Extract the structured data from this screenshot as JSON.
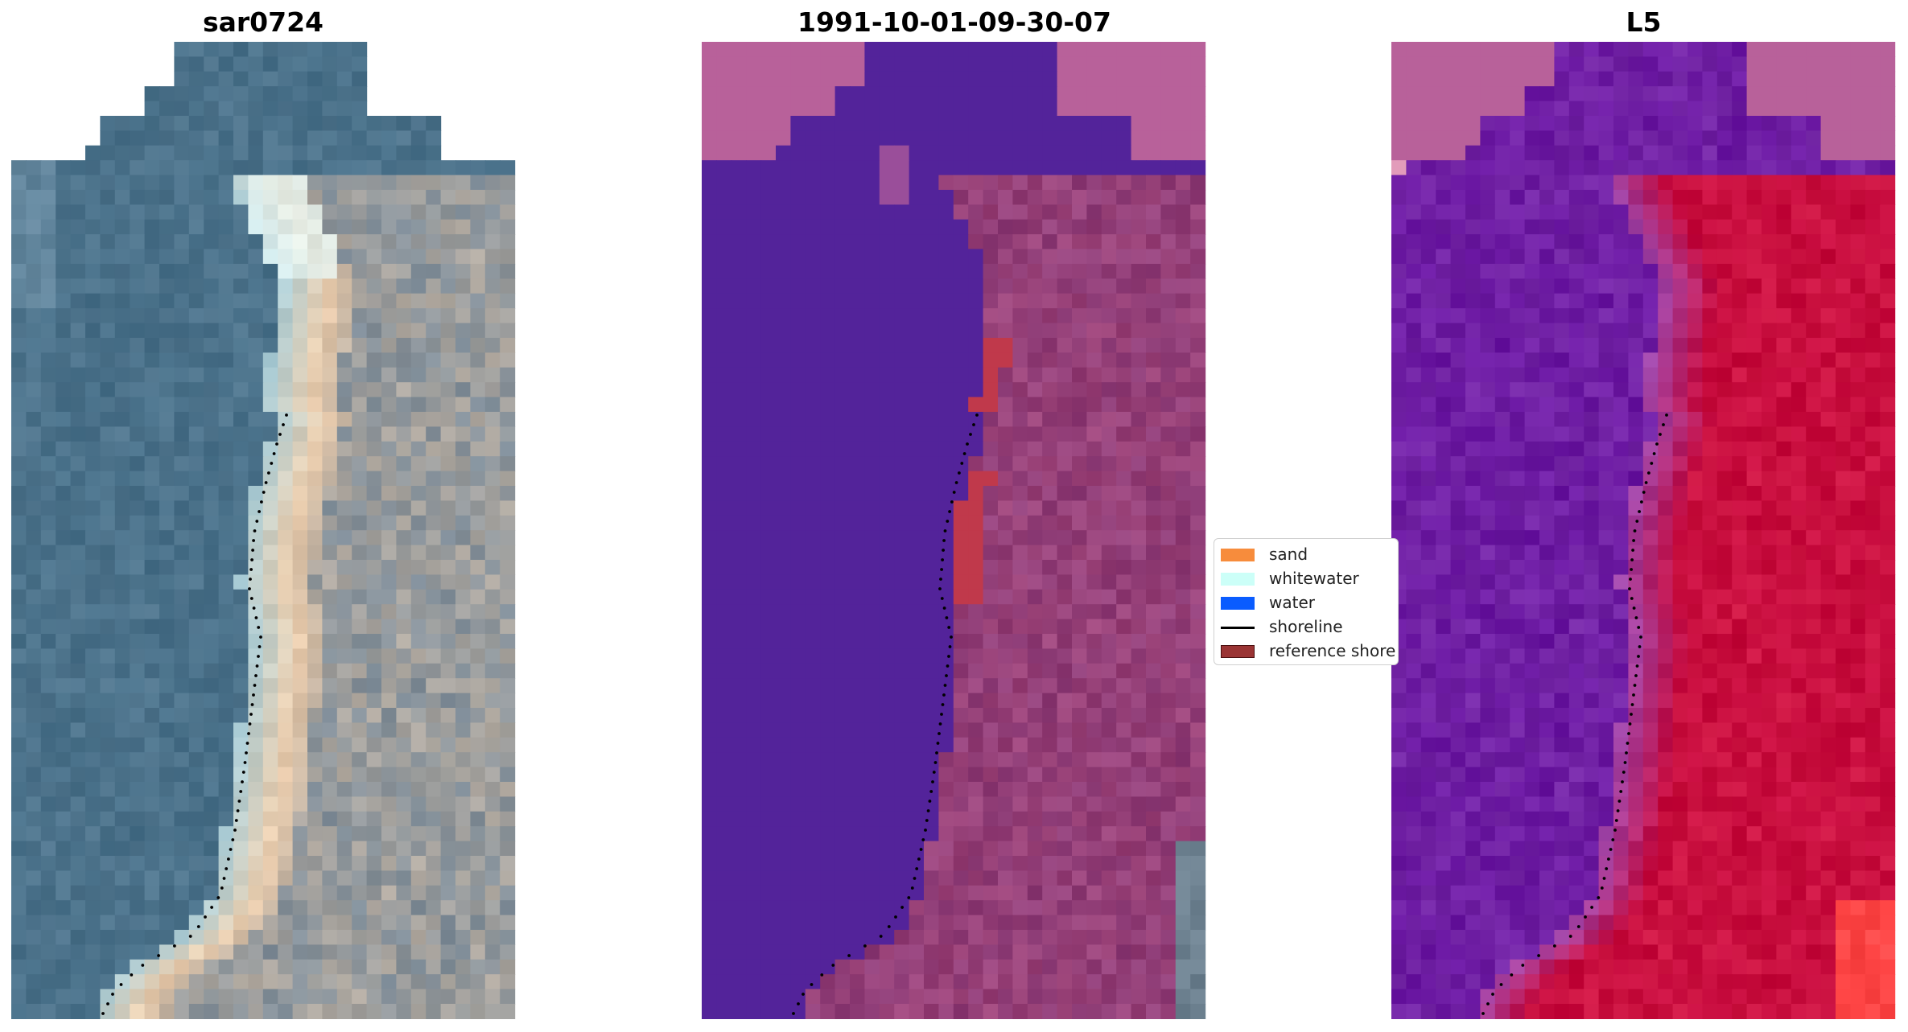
{
  "figure": {
    "panels": [
      {
        "id": "rgb",
        "title": "sar0724"
      },
      {
        "id": "classified",
        "title": "1991-10-01-09-30-07"
      },
      {
        "id": "l5",
        "title": "L5"
      }
    ],
    "legend": {
      "items": [
        {
          "label": "sand",
          "kind": "patch",
          "color": "#f78c3c"
        },
        {
          "label": "whitewater",
          "kind": "patch",
          "color": "#ccfff8"
        },
        {
          "label": "water",
          "kind": "patch",
          "color": "#0a5cff"
        },
        {
          "label": "shoreline",
          "kind": "line",
          "color": "#000000"
        },
        {
          "label": "reference shore",
          "kind": "patch",
          "color": "#9a3434"
        }
      ]
    },
    "colors": {
      "rgb_water": "#476f88",
      "rgb_sand": "#f3d0ac",
      "rgb_land": "#7e8c98",
      "class_water": "#53239a",
      "class_land": "#8e3d78",
      "class_nodata": "#b8619a",
      "class_reference": "#c0394b",
      "l5_water": "#6a17a2",
      "l5_land": "#c60a3d",
      "l5_nodata": "#b8619a",
      "shoreline": "#000000"
    }
  }
}
